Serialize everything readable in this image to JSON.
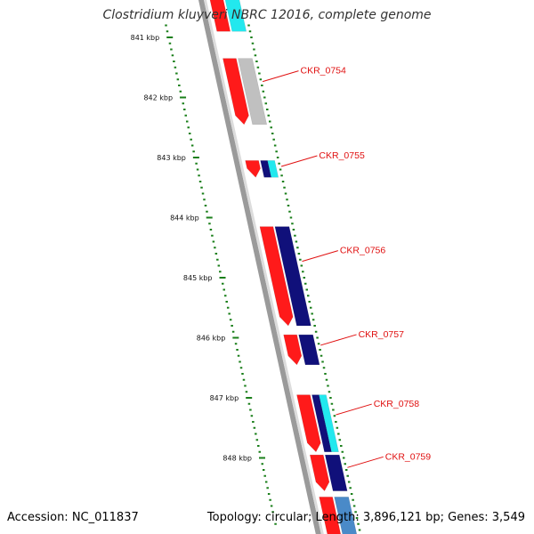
{
  "title": "Clostridium kluyveri NBRC 12016, complete genome",
  "accession": "Accession: NC_011837",
  "summary": "Topology: circular; Length: 3,896,121 bp; Genes: 3,549",
  "colors": {
    "backbone": "#9a9a9a",
    "tick": "#1a7f1a",
    "gene_red": "#ff1a1a",
    "cds_cyan": "#22e8ee",
    "cds_gray": "#c0c0c0",
    "cds_navy": "#10107a",
    "cds_blue": "#4a8ac8",
    "label": "#e01010"
  },
  "ticks": [
    "841 kbp",
    "842 kbp",
    "843 kbp",
    "844 kbp",
    "845 kbp",
    "846 kbp",
    "847 kbp",
    "848 kbp"
  ],
  "genes": [
    {
      "label": "CKR_0754",
      "start": 841.35,
      "end": 842.45,
      "cds_color": "cds_gray"
    },
    {
      "label": "CKR_0755",
      "start": 843.05,
      "end": 843.33,
      "cds_color": "cds_navy",
      "accent_color": "cds_cyan"
    },
    {
      "label": "CKR_0756",
      "start": 844.15,
      "end": 845.8,
      "cds_color": "cds_navy"
    },
    {
      "label": "CKR_0757",
      "start": 845.95,
      "end": 846.45,
      "cds_color": "cds_navy"
    },
    {
      "label": "CKR_0758",
      "start": 846.95,
      "end": 847.9,
      "cds_color": "cds_navy",
      "accent_color": "cds_cyan"
    },
    {
      "label": "CKR_0759",
      "start": 847.95,
      "end": 848.55,
      "cds_color": "cds_navy"
    }
  ],
  "partial_genes": [
    {
      "start": 840.2,
      "end": 840.9,
      "cds_color": "cds_cyan"
    },
    {
      "start": 848.65,
      "end": 849.3,
      "cds_color": "cds_blue"
    }
  ]
}
